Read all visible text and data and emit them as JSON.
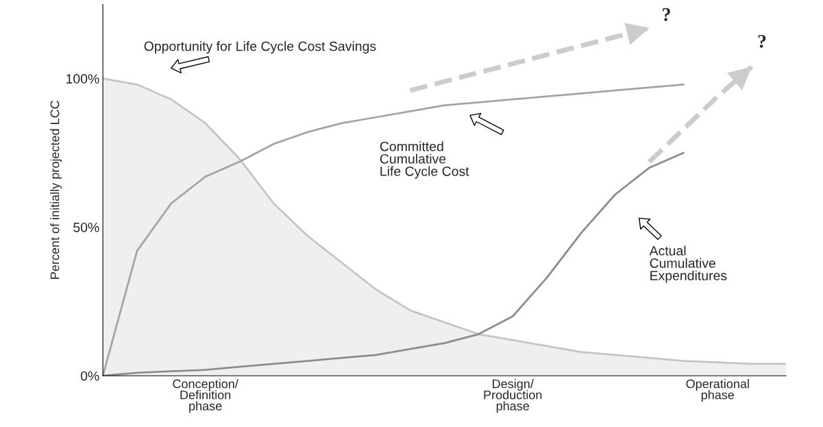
{
  "chart_data": {
    "type": "line",
    "ylabel": "Percent of initially projected LCC",
    "categories": [
      null,
      null,
      null,
      "Conception/\nDefinition\nphase",
      null,
      null,
      null,
      null,
      null,
      null,
      null,
      null,
      "Design/\nProduction\nphase",
      null,
      null,
      null,
      null,
      null,
      "Operational\nphase",
      null,
      null
    ],
    "ylim": [
      0,
      125
    ],
    "yticks": [
      {
        "value": 0,
        "label": "0%"
      },
      {
        "value": 50,
        "label": "50%"
      },
      {
        "value": 100,
        "label": "100%"
      }
    ],
    "grid": false,
    "series": [
      {
        "type": "area",
        "color": "#c4c4c4",
        "values": [
          100,
          98,
          93,
          85,
          73,
          58,
          47,
          38,
          29,
          22,
          18,
          14,
          12,
          10,
          8,
          7,
          6,
          5,
          4.5,
          4,
          4
        ]
      },
      {
        "color": "#a4a4a4",
        "values": [
          0,
          42,
          58,
          67,
          72,
          78,
          82,
          85,
          87,
          89,
          91,
          92,
          93,
          94,
          95,
          96,
          97,
          98,
          null,
          null,
          null
        ]
      },
      {
        "color": "#8c8c8c",
        "values": [
          0,
          1,
          1.5,
          2,
          3,
          4,
          5,
          6,
          7,
          9,
          11,
          14,
          20,
          33,
          48,
          61,
          70,
          75,
          null,
          null,
          null
        ]
      },
      {
        "color": "#cccccc",
        "line_style": "dashed",
        "values": [
          null,
          null,
          null,
          null,
          null,
          null,
          null,
          null,
          null,
          96,
          99,
          102,
          105,
          108,
          111,
          114,
          117,
          null,
          null,
          null,
          null
        ]
      },
      {
        "color": "#cccccc",
        "line_style": "dashed",
        "values": [
          null,
          null,
          null,
          null,
          null,
          null,
          null,
          null,
          null,
          null,
          null,
          null,
          null,
          null,
          null,
          null,
          72,
          83,
          94,
          104,
          null
        ]
      }
    ],
    "annotations": [
      "Opportunity for Life Cycle Cost Savings",
      "Committed\nCumulative\nLife Cycle Cost",
      "Actual\nCumulative\nExpenditures",
      "?",
      "?"
    ]
  }
}
